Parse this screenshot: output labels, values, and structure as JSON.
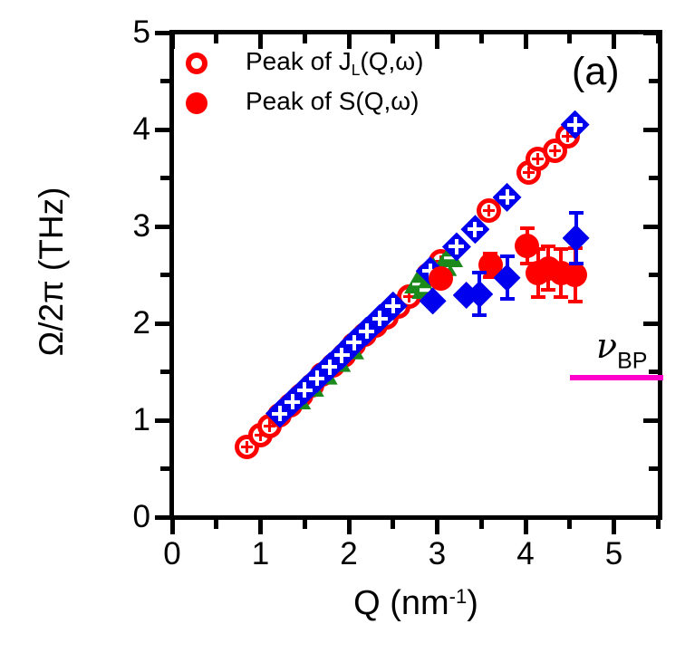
{
  "figure": {
    "panel_label": "(a)",
    "colors": {
      "red": "#FF0000",
      "blue": "#0000EE",
      "green": "#1B8A1B",
      "magenta": "#FF00CC",
      "axis": "#000000"
    },
    "legend": [
      {
        "marker": "open-circle",
        "color": "#FF0000",
        "pre": "Peak of J",
        "sub": "L",
        "post": "(Q,ω)"
      },
      {
        "marker": "filled-circle",
        "color": "#FF0000",
        "pre": "Peak of S",
        "sub": "",
        "post": "(Q,ω)"
      }
    ],
    "y_axis": {
      "label": "Ω/2π (THz)",
      "tick_labels": [
        "0",
        "1",
        "2",
        "3",
        "4",
        "5"
      ]
    },
    "x_axis": {
      "label_pre": "Q (nm",
      "label_sup": "-1",
      "label_post": ")",
      "tick_labels": [
        "0",
        "1",
        "2",
        "3",
        "4",
        "5"
      ]
    },
    "annotation": {
      "nu": "ν",
      "sub": "BP"
    }
  },
  "chart_data": {
    "type": "scatter",
    "title": "",
    "xlabel": "Q (nm^-1)",
    "ylabel": "Omega/2pi (THz)",
    "xlim": [
      0,
      5.52
    ],
    "ylim": [
      0,
      5
    ],
    "x_major_ticks": [
      0,
      1,
      2,
      3,
      4,
      5
    ],
    "x_minor_ticks": [
      0.5,
      1.5,
      2.5,
      3.5,
      4.5,
      5.5
    ],
    "y_major_ticks": [
      0,
      1,
      2,
      3,
      4,
      5
    ],
    "y_minor_ticks": [
      0.5,
      1.5,
      2.5,
      3.5,
      4.5
    ],
    "grid": false,
    "legend_position": "top-left-inside",
    "series": [
      {
        "name": "Peak of JL(Q,w) - open red circles",
        "marker": "open-circle",
        "color": "#FF0000",
        "points": [
          [
            0.85,
            0.72
          ],
          [
            1.0,
            0.85
          ],
          [
            1.1,
            0.94
          ],
          [
            1.22,
            1.05
          ],
          [
            1.34,
            1.15
          ],
          [
            1.46,
            1.26
          ],
          [
            1.58,
            1.36
          ],
          [
            1.7,
            1.47
          ],
          [
            1.82,
            1.57
          ],
          [
            1.94,
            1.67
          ],
          [
            2.06,
            1.78
          ],
          [
            2.18,
            1.88
          ],
          [
            2.3,
            1.98
          ],
          [
            2.43,
            2.06
          ],
          [
            2.56,
            2.17
          ],
          [
            2.68,
            2.28
          ],
          [
            2.9,
            2.5
          ],
          [
            3.04,
            2.64
          ],
          [
            3.58,
            3.16
          ],
          [
            4.04,
            3.56
          ],
          [
            4.14,
            3.7
          ],
          [
            4.33,
            3.78
          ],
          [
            4.48,
            3.93
          ]
        ]
      },
      {
        "name": "Peak of JL(Q,w) - green triangles",
        "marker": "triangle",
        "color": "#1B8A1B",
        "points": [
          [
            1.42,
            1.23
          ],
          [
            1.57,
            1.36
          ],
          [
            1.72,
            1.49
          ],
          [
            1.87,
            1.62
          ],
          [
            2.02,
            1.75
          ],
          [
            2.78,
            2.43
          ],
          [
            2.86,
            2.37
          ],
          [
            2.96,
            2.56
          ],
          [
            3.07,
            2.61
          ],
          [
            3.14,
            2.7
          ]
        ]
      },
      {
        "name": "Peak of JL(Q,w) - open blue diamonds",
        "marker": "open-diamond",
        "color": "#0000EE",
        "points": [
          [
            1.22,
            1.07
          ],
          [
            1.36,
            1.19
          ],
          [
            1.5,
            1.31
          ],
          [
            1.64,
            1.43
          ],
          [
            1.78,
            1.55
          ],
          [
            1.92,
            1.67
          ],
          [
            2.06,
            1.8
          ],
          [
            2.2,
            1.92
          ],
          [
            2.35,
            2.05
          ],
          [
            2.5,
            2.18
          ],
          [
            2.92,
            2.54
          ],
          [
            3.22,
            2.79
          ],
          [
            3.43,
            2.97
          ],
          [
            3.79,
            3.3
          ],
          [
            4.56,
            4.05
          ]
        ]
      },
      {
        "name": "Peak of S(Q,w) - filled red circles",
        "marker": "filled-circle",
        "color": "#FF0000",
        "points": [
          [
            3.04,
            2.46,
            0
          ],
          [
            3.6,
            2.6,
            0.12
          ],
          [
            4.02,
            2.8,
            0.18
          ],
          [
            4.14,
            2.52,
            0.25
          ],
          [
            4.26,
            2.57,
            0.22
          ],
          [
            4.4,
            2.52,
            0.25
          ],
          [
            4.56,
            2.5,
            0.28
          ]
        ]
      },
      {
        "name": "Peak of S(Q,w) - filled blue diamonds",
        "marker": "filled-diamond",
        "color": "#0000EE",
        "points": [
          [
            2.95,
            2.23,
            0
          ],
          [
            3.33,
            2.29,
            0
          ],
          [
            3.48,
            2.3,
            0.22
          ],
          [
            3.79,
            2.47,
            0.22
          ],
          [
            4.57,
            2.88,
            0.26
          ]
        ]
      }
    ],
    "bp_line": {
      "label": "nu_BP",
      "y": 1.44,
      "x_from": 4.5,
      "x_to": 5.56,
      "color": "#FF00CC"
    }
  }
}
